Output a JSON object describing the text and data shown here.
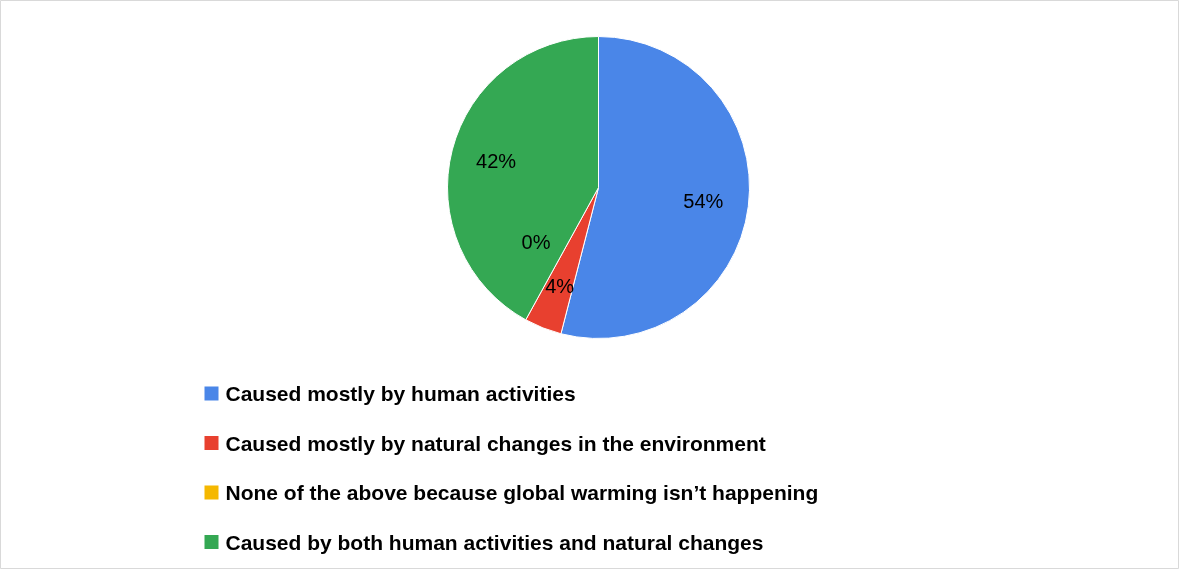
{
  "chart_data": {
    "type": "pie",
    "categories": [
      "Caused mostly by human activities",
      "Caused mostly by natural changes in the environment",
      "None of the above because global warming isn’t happening",
      "Caused by both human activities and natural changes"
    ],
    "values": [
      54,
      4,
      0,
      42
    ],
    "colors": [
      "#4a86e8",
      "#e8402f",
      "#f5b800",
      "#34a853"
    ],
    "value_labels": [
      "54%",
      "4%",
      "0%",
      "42%"
    ],
    "legend": "bottom"
  }
}
